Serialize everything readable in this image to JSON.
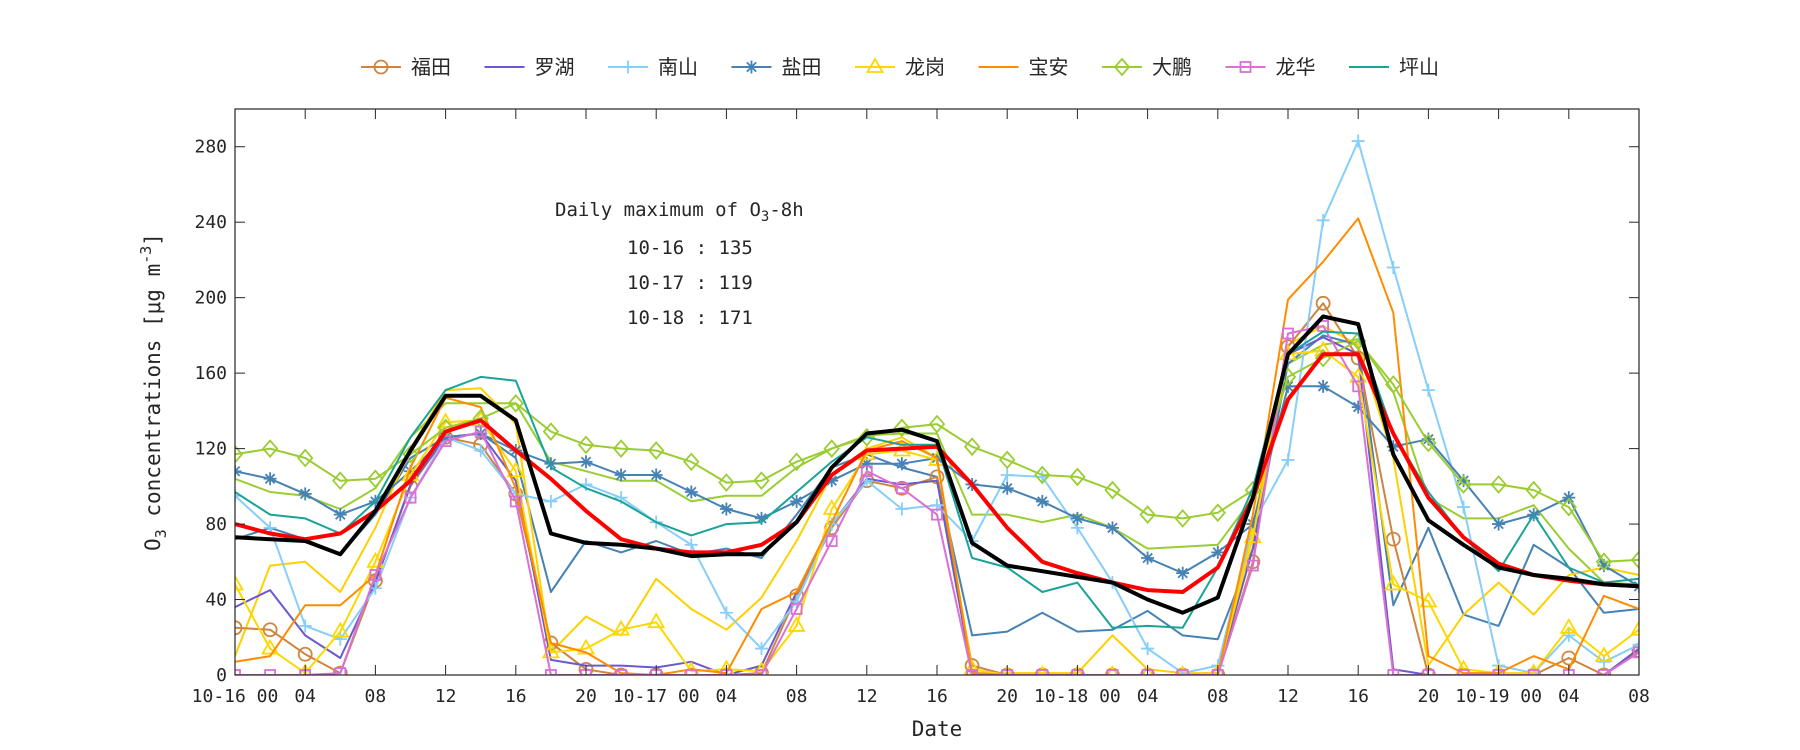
{
  "chart_data": {
    "type": "line",
    "xlabel": "Date",
    "ylabel": {
      "main": "O",
      "sub": "3",
      "rest": " concentrations [μg m",
      "sup": "-3",
      "end": "]"
    },
    "xlim": [
      "10-16 00:00",
      "10-19 08:00"
    ],
    "ylim": [
      0,
      300
    ],
    "yticks": [
      0,
      40,
      80,
      120,
      160,
      200,
      240,
      280
    ],
    "xtick_labels": [
      "10-16 00",
      "04",
      "08",
      "12",
      "16",
      "20",
      "10-17 00",
      "04",
      "08",
      "12",
      "16",
      "20",
      "10-18 00",
      "04",
      "08",
      "12",
      "16",
      "20",
      "10-19 00",
      "04",
      "08"
    ],
    "grid": false,
    "legend_position": "top",
    "annotation": {
      "title_main": "Daily maximum of O",
      "title_sub": "3",
      "title_end": "-8h",
      "lines": [
        "10-16 : 135",
        "10-17 : 119",
        "10-18 : 171"
      ]
    },
    "x": [
      "10-16 00:00",
      "10-16 02:00",
      "10-16 04:00",
      "10-16 06:00",
      "10-16 08:00",
      "10-16 10:00",
      "10-16 12:00",
      "10-16 14:00",
      "10-16 16:00",
      "10-16 18:00",
      "10-16 20:00",
      "10-16 22:00",
      "10-17 00:00",
      "10-17 02:00",
      "10-17 04:00",
      "10-17 06:00",
      "10-17 08:00",
      "10-17 10:00",
      "10-17 12:00",
      "10-17 14:00",
      "10-17 16:00",
      "10-17 18:00",
      "10-17 20:00",
      "10-17 22:00",
      "10-18 00:00",
      "10-18 02:00",
      "10-18 04:00",
      "10-18 06:00",
      "10-18 08:00",
      "10-18 10:00",
      "10-18 12:00",
      "10-18 14:00",
      "10-18 16:00",
      "10-18 18:00",
      "10-18 20:00",
      "10-18 22:00",
      "10-19 00:00",
      "10-19 02:00",
      "10-19 04:00",
      "10-19 06:00",
      "10-19 08:00"
    ],
    "series": [
      {
        "name": "",
        "color": "#9ACD32",
        "marker": "none",
        "legend": false,
        "width": 2,
        "values": [
          104,
          97,
          95,
          88,
          99,
          126,
          144,
          144,
          144,
          113,
          108,
          103,
          103,
          92,
          95,
          95,
          110,
          120,
          127,
          128,
          128,
          85,
          85,
          81,
          85,
          78,
          67,
          68,
          69,
          94,
          165,
          175,
          178,
          150,
          94,
          83,
          83,
          90,
          67,
          49,
          48
        ]
      },
      {
        "name": "",
        "color": "#4682B4",
        "marker": "none",
        "legend": false,
        "width": 2,
        "values": [
          72,
          78,
          72,
          64,
          85,
          115,
          126,
          128,
          115,
          44,
          71,
          65,
          71,
          64,
          67,
          62,
          85,
          110,
          117,
          110,
          105,
          21,
          23,
          33,
          23,
          24,
          34,
          21,
          19,
          67,
          165,
          180,
          175,
          37,
          78,
          32,
          26,
          69,
          57,
          33,
          35
        ]
      },
      {
        "name": "",
        "color": "#FFD000",
        "marker": "none",
        "legend": false,
        "width": 2,
        "values": [
          10,
          58,
          60,
          44,
          78,
          120,
          151,
          152,
          133,
          12,
          31,
          21,
          51,
          35,
          24,
          41,
          71,
          106,
          120,
          126,
          115,
          1,
          1,
          1,
          1,
          21,
          3,
          1,
          1,
          78,
          175,
          185,
          175,
          115,
          5,
          32,
          49,
          32,
          53,
          57,
          53
        ]
      },
      {
        "name": "福田",
        "color": "#CD853F",
        "marker": "circle",
        "legend": true,
        "width": 2,
        "values": [
          25,
          24,
          11,
          1,
          50,
          100,
          126,
          122,
          96,
          17,
          3,
          0,
          0,
          0,
          0,
          1,
          42,
          78,
          103,
          99,
          105,
          5,
          0,
          0,
          0,
          0,
          0,
          0,
          0,
          60,
          174,
          197,
          168,
          72,
          0,
          0,
          0,
          0,
          9,
          0,
          13
        ]
      },
      {
        "name": "罗湖",
        "color": "#6A5ACD",
        "marker": "none",
        "legend": true,
        "width": 2,
        "values": [
          36,
          45,
          21,
          9,
          49,
          101,
          126,
          128,
          103,
          8,
          5,
          5,
          4,
          7,
          0,
          5,
          44,
          80,
          104,
          101,
          103,
          1,
          0,
          0,
          0,
          0,
          0,
          0,
          1,
          67,
          170,
          179,
          170,
          3,
          0,
          0,
          0,
          0,
          0,
          0,
          14
        ]
      },
      {
        "name": "南山",
        "color": "#87CEFA",
        "marker": "plus",
        "legend": true,
        "width": 2,
        "values": [
          95,
          78,
          26,
          19,
          46,
          94,
          126,
          119,
          96,
          92,
          101,
          94,
          81,
          69,
          33,
          14,
          39,
          80,
          103,
          88,
          90,
          71,
          106,
          105,
          78,
          49,
          14,
          1,
          5,
          80,
          114,
          241,
          283,
          216,
          151,
          89,
          5,
          1,
          21,
          7,
          16
        ]
      },
      {
        "name": "盐田",
        "color": "#4682B4",
        "marker": "star",
        "legend": true,
        "width": 2,
        "values": [
          108,
          104,
          96,
          85,
          92,
          108,
          126,
          128,
          119,
          112,
          113,
          106,
          106,
          97,
          88,
          83,
          92,
          103,
          112,
          112,
          115,
          101,
          99,
          92,
          83,
          78,
          62,
          54,
          65,
          80,
          153,
          153,
          142,
          121,
          125,
          103,
          80,
          85,
          94,
          58,
          47
        ]
      },
      {
        "name": "龙岗",
        "color": "#FFD700",
        "marker": "triangle",
        "legend": true,
        "width": 2,
        "values": [
          48,
          14,
          1,
          23,
          60,
          106,
          134,
          135,
          108,
          12,
          14,
          24,
          28,
          2,
          3,
          2,
          26,
          88,
          117,
          119,
          114,
          3,
          0,
          0,
          0,
          0,
          0,
          0,
          1,
          73,
          170,
          172,
          158,
          48,
          39,
          3,
          1,
          1,
          25,
          10,
          24
        ]
      },
      {
        "name": "宝安",
        "color": "#FF8C00",
        "marker": "none",
        "legend": true,
        "width": 2,
        "values": [
          7,
          10,
          37,
          37,
          53,
          110,
          147,
          142,
          99,
          17,
          12,
          1,
          0,
          3,
          1,
          35,
          44,
          81,
          119,
          124,
          115,
          1,
          0,
          0,
          0,
          0,
          0,
          0,
          0,
          85,
          199,
          219,
          242,
          192,
          10,
          1,
          1,
          10,
          3,
          42,
          35
        ]
      },
      {
        "name": "大鹏",
        "color": "#9ACD32",
        "marker": "diamond",
        "legend": true,
        "width": 2,
        "values": [
          117,
          120,
          115,
          103,
          104,
          117,
          131,
          136,
          144,
          129,
          122,
          120,
          119,
          113,
          102,
          103,
          113,
          120,
          126,
          131,
          133,
          121,
          114,
          106,
          105,
          98,
          85,
          83,
          86,
          98,
          158,
          168,
          177,
          154,
          123,
          101,
          101,
          98,
          89,
          60,
          61
        ]
      },
      {
        "name": "龙华",
        "color": "#DA70D6",
        "marker": "square",
        "legend": true,
        "width": 2,
        "values": [
          0,
          0,
          0,
          1,
          53,
          94,
          124,
          129,
          92,
          0,
          0,
          0,
          0,
          0,
          0,
          0,
          35,
          71,
          108,
          99,
          85,
          0,
          0,
          0,
          0,
          0,
          0,
          0,
          0,
          58,
          181,
          185,
          153,
          0,
          0,
          0,
          0,
          0,
          0,
          0,
          12
        ]
      },
      {
        "name": "坪山",
        "color": "#1AA398",
        "marker": "none",
        "legend": true,
        "width": 2,
        "values": [
          97,
          85,
          83,
          75,
          92,
          126,
          151,
          158,
          156,
          110,
          99,
          92,
          81,
          74,
          80,
          81,
          97,
          113,
          126,
          122,
          122,
          62,
          57,
          44,
          49,
          25,
          26,
          25,
          57,
          99,
          170,
          182,
          181,
          128,
          97,
          73,
          55,
          85,
          57,
          49,
          51
        ]
      },
      {
        "name": "",
        "color": "#FF0000",
        "marker": "none",
        "legend": false,
        "width": 4,
        "values": [
          80,
          75,
          72,
          75,
          87,
          103,
          129,
          135,
          119,
          104,
          87,
          72,
          67,
          65,
          65,
          69,
          81,
          106,
          119,
          120,
          121,
          101,
          78,
          60,
          54,
          49,
          45,
          44,
          57,
          94,
          146,
          170,
          170,
          128,
          94,
          73,
          59,
          53,
          50,
          48,
          47
        ]
      },
      {
        "name": "",
        "color": "#000000",
        "marker": "none",
        "legend": false,
        "width": 4,
        "values": [
          73,
          72,
          71,
          64,
          87,
          119,
          148,
          148,
          135,
          75,
          70,
          69,
          67,
          63,
          64,
          64,
          81,
          110,
          128,
          130,
          124,
          70,
          58,
          55,
          52,
          49,
          40,
          33,
          41,
          94,
          170,
          190,
          186,
          117,
          82,
          69,
          57,
          53,
          51,
          48,
          47
        ]
      }
    ]
  }
}
